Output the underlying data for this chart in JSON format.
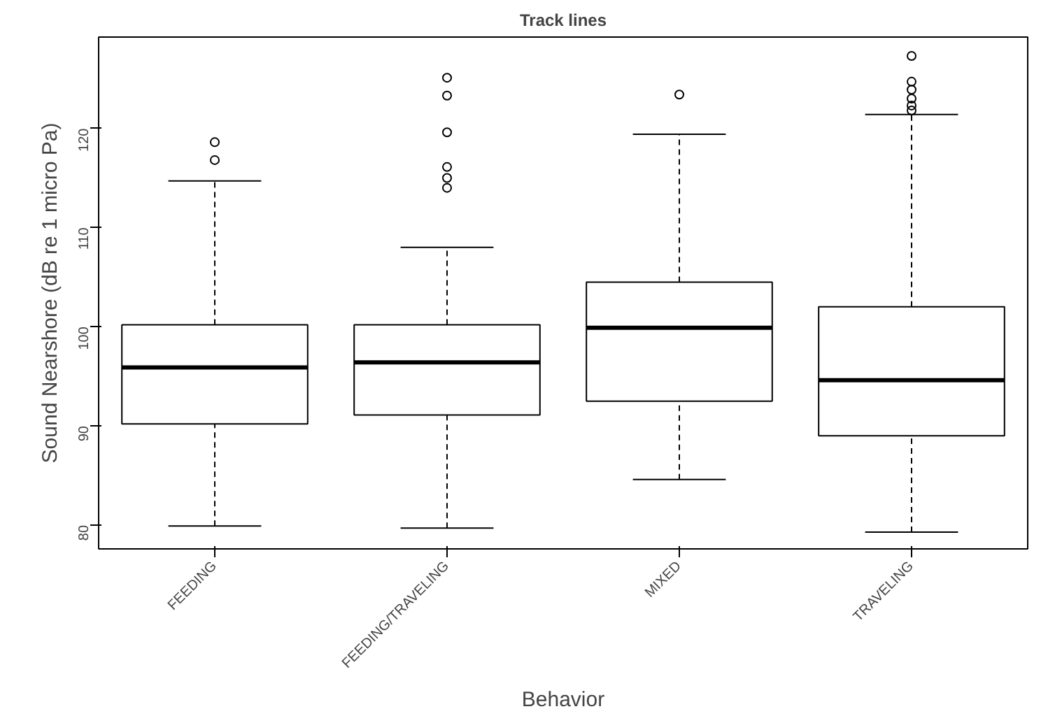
{
  "chart_data": {
    "type": "box",
    "title": "Track lines",
    "xlabel": "Behavior",
    "ylabel": "Sound Nearshore (dB re 1 micro Pa)",
    "categories": [
      "FEEDING",
      "FEEDING/TRAVELING",
      "MIXED",
      "TRAVELING"
    ],
    "boxes": [
      {
        "low": 79.9,
        "q1": 90.2,
        "median": 95.9,
        "q3": 100.2,
        "high": 114.7,
        "outliers": [
          116.8,
          118.6
        ]
      },
      {
        "low": 79.7,
        "q1": 91.1,
        "median": 96.4,
        "q3": 100.2,
        "high": 108.0,
        "outliers": [
          114.0,
          115.0,
          116.1,
          119.6,
          123.3,
          125.1
        ]
      },
      {
        "low": 84.6,
        "q1": 92.5,
        "median": 99.9,
        "q3": 104.5,
        "high": 119.4,
        "outliers": [
          123.4
        ]
      },
      {
        "low": 79.3,
        "q1": 89.0,
        "median": 94.6,
        "q3": 102.0,
        "high": 121.4,
        "outliers": [
          121.8,
          122.3,
          123.0,
          123.9,
          124.7,
          127.3
        ]
      }
    ],
    "ylim": [
      77.6,
      129.2
    ],
    "yticks": [
      80,
      90,
      100,
      110,
      120
    ],
    "grid": false,
    "marker": "circle"
  }
}
